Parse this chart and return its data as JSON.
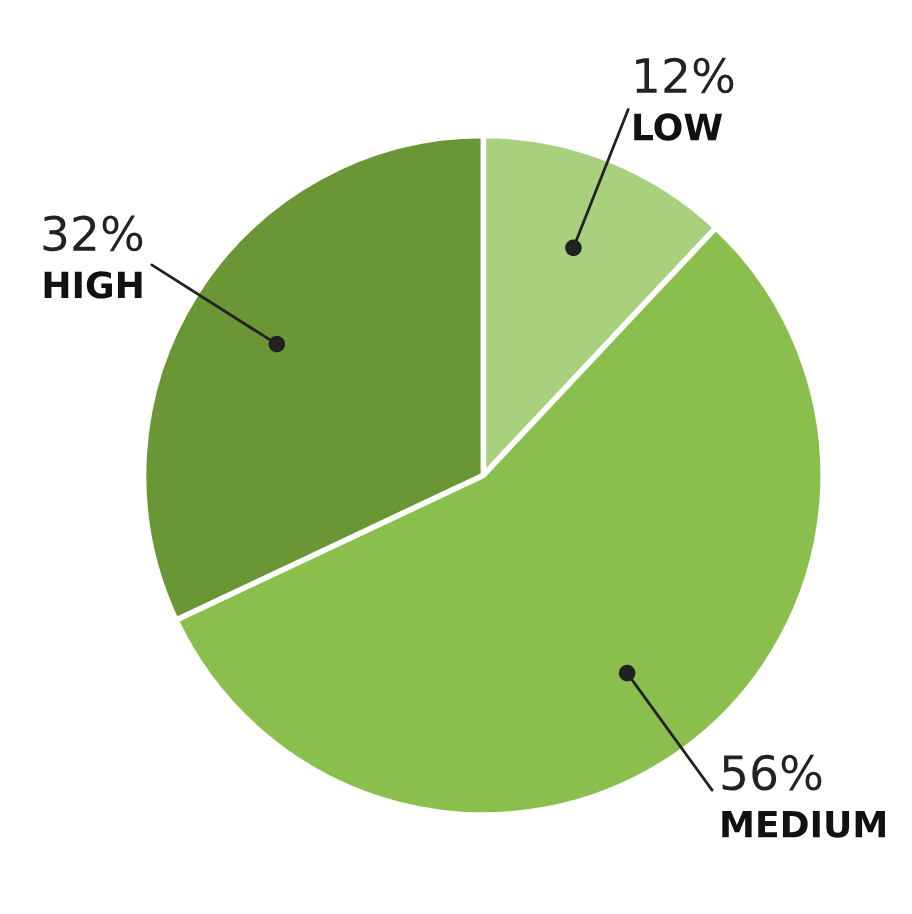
{
  "chart_data": {
    "type": "pie",
    "categories": [
      "LOW",
      "MEDIUM",
      "HIGH"
    ],
    "values": [
      12,
      56,
      32
    ],
    "colors": [
      "#a9d07d",
      "#8bbf4d",
      "#6b9636"
    ],
    "value_labels": [
      "12%",
      "56%",
      "32%"
    ]
  }
}
